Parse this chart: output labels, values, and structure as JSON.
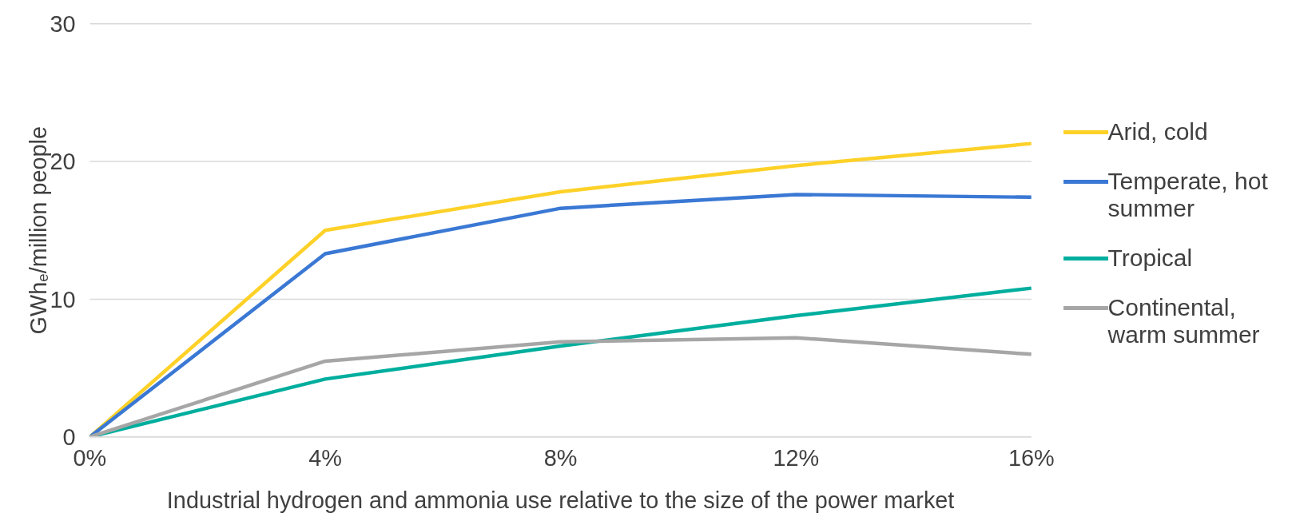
{
  "chart_data": {
    "type": "line",
    "xlabel": "Industrial hydrogen and ammonia use relative to the size of the power market",
    "ylabel": "GWh$_{e}$/million people",
    "x": [
      0,
      4,
      8,
      12,
      16
    ],
    "series": [
      {
        "name": "Arid, cold",
        "color": "#fdd128",
        "values": [
          0,
          15.0,
          17.8,
          19.7,
          21.3
        ]
      },
      {
        "name": "Temperate, hot summer",
        "color": "#3a78d4",
        "values": [
          0,
          13.3,
          16.6,
          17.6,
          17.4
        ]
      },
      {
        "name": "Tropical",
        "color": "#00ae9e",
        "values": [
          0,
          4.2,
          6.6,
          8.8,
          10.8
        ]
      },
      {
        "name": "Continental, warm summer",
        "color": "#a6a6a6",
        "values": [
          0,
          5.5,
          6.9,
          7.2,
          6.0
        ]
      }
    ],
    "xlim": [
      0,
      16
    ],
    "xticks": [
      {
        "value": 0,
        "label": "0%"
      },
      {
        "value": 4,
        "label": "4%"
      },
      {
        "value": 8,
        "label": "8%"
      },
      {
        "value": 12,
        "label": "12%"
      },
      {
        "value": 16,
        "label": "16%"
      }
    ],
    "ylim": [
      0,
      30
    ],
    "yticks": [
      0,
      10,
      20,
      30
    ],
    "grid": "y",
    "legend": "right",
    "marker": "none",
    "line_style": "solid"
  }
}
